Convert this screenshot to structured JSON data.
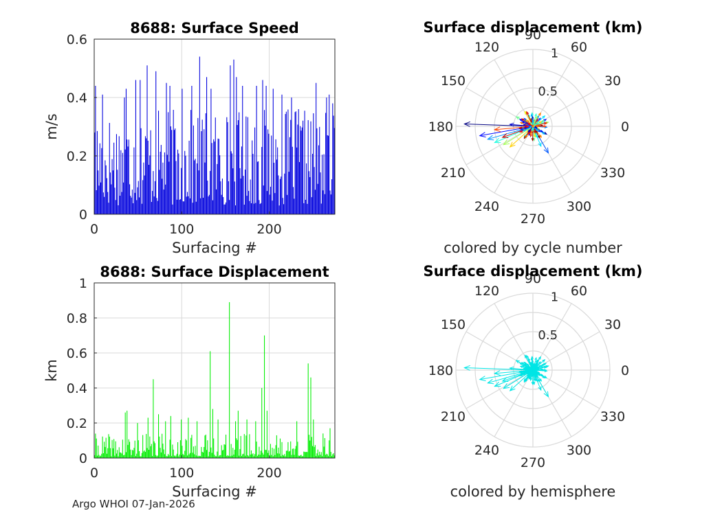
{
  "footer": "Argo WHOI 07-Jan-2026",
  "colors": {
    "speed_bars": "#0000dd",
    "displacement_bars": "#00ee00",
    "hemisphere_arrows": "#00e5e5",
    "grid": "#d9d9d9"
  },
  "chart_data": [
    {
      "id": "speed",
      "type": "bar",
      "title": "8688: Surface Speed",
      "xlabel": "Surfacing #",
      "ylabel": "m/s",
      "xlim": [
        0,
        275
      ],
      "ylim": [
        0,
        0.6
      ],
      "xticks": [
        0,
        100,
        200
      ],
      "yticks": [
        0,
        0.2,
        0.4,
        0.6
      ],
      "grid": true,
      "n": 275,
      "seed": 17,
      "peaks": [
        [
          1,
          0.28
        ],
        [
          2,
          0.44
        ],
        [
          10,
          0.41
        ],
        [
          35,
          0.4
        ],
        [
          37,
          0.43
        ],
        [
          48,
          0.46
        ],
        [
          53,
          0.46
        ],
        [
          61,
          0.51
        ],
        [
          71,
          0.49
        ],
        [
          83,
          0.45
        ],
        [
          87,
          0.44
        ],
        [
          101,
          0.43
        ],
        [
          112,
          0.44
        ],
        [
          121,
          0.54
        ],
        [
          129,
          0.47
        ],
        [
          134,
          0.43
        ],
        [
          156,
          0.51
        ],
        [
          160,
          0.53
        ],
        [
          163,
          0.47
        ],
        [
          170,
          0.44
        ],
        [
          186,
          0.44
        ],
        [
          193,
          0.46
        ],
        [
          197,
          0.44
        ],
        [
          205,
          0.43
        ],
        [
          215,
          0.41
        ],
        [
          226,
          0.4
        ],
        [
          234,
          0.36
        ],
        [
          254,
          0.45
        ],
        [
          266,
          0.4
        ],
        [
          269,
          0.41
        ],
        [
          273,
          0.38
        ]
      ]
    },
    {
      "id": "displacement",
      "type": "bar",
      "title": "8688: Surface Displacement",
      "xlabel": "Surfacing #",
      "ylabel": "km",
      "xlim": [
        0,
        275
      ],
      "ylim": [
        0,
        1
      ],
      "xticks": [
        0,
        100,
        200
      ],
      "yticks": [
        0,
        0.2,
        0.4,
        0.6,
        0.8,
        1
      ],
      "ytick_labels": [
        "0",
        "0.2",
        "0.4",
        "0.6",
        "0.8",
        "1"
      ],
      "grid": true,
      "n": 275,
      "seed": 41,
      "peaks": [
        [
          36,
          0.26
        ],
        [
          38,
          0.27
        ],
        [
          50,
          0.2
        ],
        [
          62,
          0.23
        ],
        [
          68,
          0.45
        ],
        [
          74,
          0.25
        ],
        [
          82,
          0.21
        ],
        [
          88,
          0.24
        ],
        [
          100,
          0.22
        ],
        [
          108,
          0.23
        ],
        [
          118,
          0.21
        ],
        [
          133,
          0.61
        ],
        [
          136,
          0.28
        ],
        [
          142,
          0.22
        ],
        [
          155,
          0.89
        ],
        [
          162,
          0.21
        ],
        [
          165,
          0.27
        ],
        [
          175,
          0.22
        ],
        [
          185,
          0.21
        ],
        [
          192,
          0.4
        ],
        [
          195,
          0.7
        ],
        [
          198,
          0.27
        ],
        [
          232,
          0.21
        ],
        [
          245,
          0.54
        ],
        [
          248,
          0.46
        ],
        [
          251,
          0.22
        ],
        [
          262,
          0.14
        ],
        [
          270,
          0.17
        ]
      ]
    },
    {
      "id": "polar-cycle",
      "type": "polar-quiver",
      "title": "Surface displacement (km)",
      "subtitle": "colored by cycle number",
      "rlim": [
        0,
        1
      ],
      "rticks": [
        "0.5",
        "1"
      ],
      "angle_labels": [
        "0",
        "30",
        "60",
        "90",
        "120",
        "150",
        "180",
        "210",
        "240",
        "270",
        "300",
        "330"
      ],
      "coloring": "cycle",
      "n": 275,
      "seed": 23,
      "big_vectors": [
        [
          178,
          0.89
        ],
        [
          190,
          0.7
        ],
        [
          196,
          0.61
        ],
        [
          203,
          0.54
        ],
        [
          212,
          0.45
        ],
        [
          222,
          0.4
        ],
        [
          185,
          0.5
        ],
        [
          200,
          0.42
        ],
        [
          175,
          0.3
        ],
        [
          300,
          0.4
        ],
        [
          292,
          0.28
        ],
        [
          150,
          0.25
        ],
        [
          118,
          0.22
        ],
        [
          60,
          0.2
        ]
      ]
    },
    {
      "id": "polar-hemisphere",
      "type": "polar-quiver",
      "title": "Surface displacement (km)",
      "subtitle": "colored by hemisphere",
      "rlim": [
        0,
        1
      ],
      "rticks": [
        "0.5",
        "1"
      ],
      "angle_labels": [
        "0",
        "30",
        "60",
        "90",
        "120",
        "150",
        "180",
        "210",
        "240",
        "270",
        "300",
        "330"
      ],
      "coloring": "single",
      "n": 275,
      "seed": 23,
      "big_vectors": [
        [
          178,
          0.89
        ],
        [
          190,
          0.7
        ],
        [
          196,
          0.61
        ],
        [
          203,
          0.54
        ],
        [
          212,
          0.45
        ],
        [
          222,
          0.4
        ],
        [
          185,
          0.5
        ],
        [
          200,
          0.42
        ],
        [
          175,
          0.3
        ],
        [
          300,
          0.4
        ],
        [
          292,
          0.28
        ],
        [
          150,
          0.25
        ],
        [
          118,
          0.22
        ],
        [
          60,
          0.2
        ]
      ]
    }
  ]
}
